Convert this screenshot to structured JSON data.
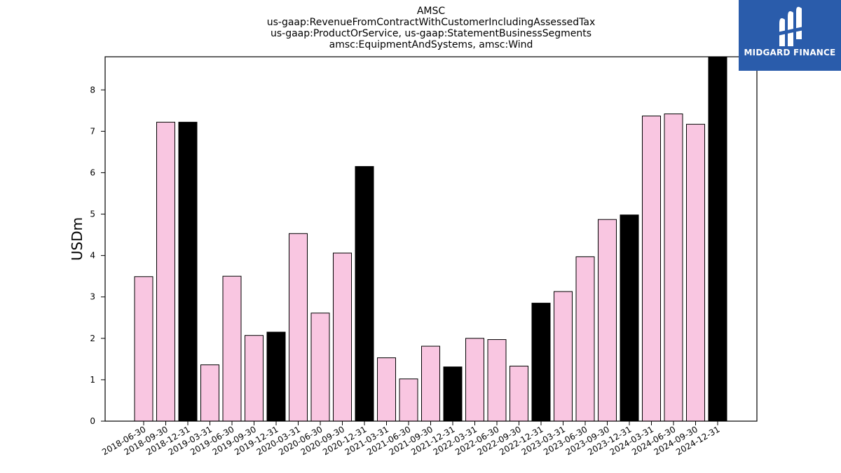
{
  "chart_data": {
    "type": "bar",
    "title_lines": [
      "AMSC",
      "us-gaap:RevenueFromContractWithCustomerIncludingAssessedTax",
      "us-gaap:ProductOrService, us-gaap:StatementBusinessSegments",
      "amsc:EquipmentAndSystems, amsc:Wind"
    ],
    "ylabel": "USDm",
    "xlabel": "",
    "ylim": [
      0,
      8.8
    ],
    "yticks": [
      0,
      1,
      2,
      3,
      4,
      5,
      6,
      7,
      8
    ],
    "grid": false,
    "categories": [
      "2018-06-30",
      "2018-09-30",
      "2018-12-31",
      "2019-03-31",
      "2019-06-30",
      "2019-09-30",
      "2019-12-31",
      "2020-03-31",
      "2020-06-30",
      "2020-09-30",
      "2020-12-31",
      "2021-03-31",
      "2021-06-30",
      "2021-09-30",
      "2021-12-31",
      "2022-03-31",
      "2022-06-30",
      "2022-09-30",
      "2022-12-31",
      "2023-03-31",
      "2023-06-30",
      "2023-09-30",
      "2023-12-31",
      "2024-03-31",
      "2024-06-30",
      "2024-09-30",
      "2024-12-31"
    ],
    "values": [
      3.49,
      7.22,
      7.22,
      1.36,
      3.5,
      2.07,
      2.15,
      4.53,
      2.61,
      4.06,
      6.15,
      1.53,
      1.02,
      1.81,
      1.31,
      2.0,
      1.97,
      1.33,
      2.85,
      3.13,
      3.97,
      4.87,
      4.98,
      7.37,
      7.42,
      7.17,
      8.8
    ],
    "colors": {
      "quarter": "#f9c6e1",
      "year_end": "#000000",
      "edge": "#000000"
    }
  },
  "logo": {
    "text": "MIDGARD FINANCE",
    "background": "#2a5cab",
    "icon": "midgard-logo-icon"
  }
}
